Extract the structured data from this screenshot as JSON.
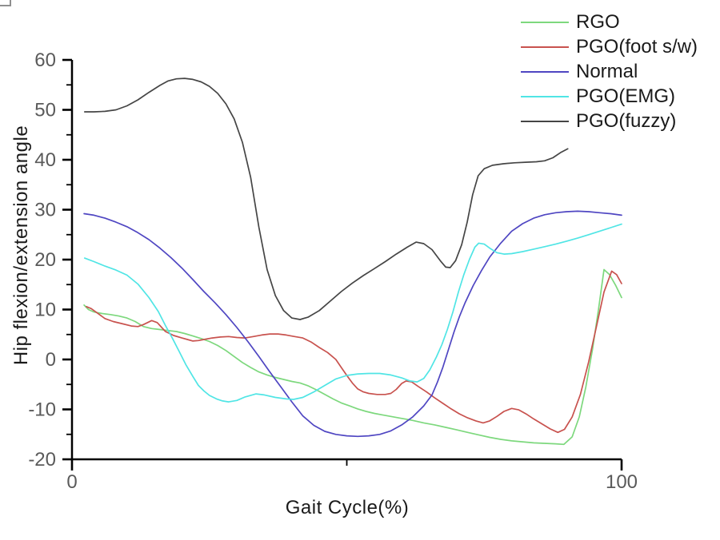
{
  "figure": {
    "background": "#ffffff",
    "xlabel": "Gait Cycle(%)",
    "ylabel": "Hip flexion/extension angle"
  },
  "chart_data": {
    "type": "line",
    "title": "",
    "xlabel": "Gait Cycle(%)",
    "ylabel": "Hip flexion/extension angle",
    "xlim": [
      0,
      100
    ],
    "ylim": [
      -20,
      60
    ],
    "x_ticks": [
      0,
      100
    ],
    "x_minor_ticks": [
      50
    ],
    "y_ticks": [
      60,
      50,
      40,
      30,
      20,
      10,
      0,
      -10,
      -20
    ],
    "y_minor_ticks": [
      55,
      45,
      35,
      25,
      15,
      5,
      -5,
      -15
    ],
    "grid": false,
    "legend_position": "top-right",
    "colors": {
      "axis": "#000000",
      "tick_label": "#5a5a5a",
      "label": "#1a1a1a"
    },
    "series": [
      {
        "name": "RGO",
        "color": "#7dd87d",
        "points": [
          [
            2.2,
            10.9
          ],
          [
            3,
            10.0
          ],
          [
            4,
            9.5
          ],
          [
            5.5,
            9.2
          ],
          [
            7,
            9.0
          ],
          [
            8.5,
            8.7
          ],
          [
            10,
            8.3
          ],
          [
            11.5,
            7.6
          ],
          [
            13,
            6.6
          ],
          [
            14.5,
            6.2
          ],
          [
            16,
            6.0
          ],
          [
            17.5,
            5.8
          ],
          [
            19,
            5.6
          ],
          [
            20.5,
            5.2
          ],
          [
            22,
            4.7
          ],
          [
            23.5,
            4.2
          ],
          [
            25,
            3.6
          ],
          [
            26.5,
            2.8
          ],
          [
            28,
            1.8
          ],
          [
            29.5,
            0.6
          ],
          [
            31,
            -0.6
          ],
          [
            32.5,
            -1.6
          ],
          [
            34,
            -2.5
          ],
          [
            35.5,
            -3.1
          ],
          [
            37,
            -3.6
          ],
          [
            38.5,
            -4.0
          ],
          [
            40,
            -4.4
          ],
          [
            41.5,
            -4.7
          ],
          [
            43,
            -5.3
          ],
          [
            44.5,
            -6.1
          ],
          [
            46,
            -7.0
          ],
          [
            47.5,
            -7.9
          ],
          [
            49,
            -8.7
          ],
          [
            50.5,
            -9.3
          ],
          [
            52,
            -9.9
          ],
          [
            53.5,
            -10.4
          ],
          [
            55,
            -10.8
          ],
          [
            56.5,
            -11.1
          ],
          [
            58,
            -11.4
          ],
          [
            60,
            -11.8
          ],
          [
            62,
            -12.2
          ],
          [
            64,
            -12.7
          ],
          [
            66,
            -13.1
          ],
          [
            68,
            -13.6
          ],
          [
            70,
            -14.1
          ],
          [
            72,
            -14.6
          ],
          [
            74,
            -15.1
          ],
          [
            76,
            -15.6
          ],
          [
            78,
            -16.0
          ],
          [
            80,
            -16.3
          ],
          [
            82,
            -16.5
          ],
          [
            84,
            -16.7
          ],
          [
            86,
            -16.8
          ],
          [
            88,
            -16.9
          ],
          [
            89.5,
            -17.0
          ],
          [
            91,
            -15.5
          ],
          [
            92.3,
            -11.5
          ],
          [
            93.5,
            -5.5
          ],
          [
            94.7,
            2.0
          ],
          [
            95.8,
            10.0
          ],
          [
            96.8,
            18.0
          ],
          [
            97.8,
            17.0
          ],
          [
            98.9,
            14.9
          ],
          [
            100,
            12.4
          ]
        ]
      },
      {
        "name": "PGO(foot s/w)",
        "color": "#c8524e",
        "points": [
          [
            2.6,
            10.6
          ],
          [
            3.5,
            10.2
          ],
          [
            4.5,
            9.4
          ],
          [
            6,
            8.2
          ],
          [
            7.5,
            7.6
          ],
          [
            9,
            7.2
          ],
          [
            10.8,
            6.7
          ],
          [
            12,
            6.6
          ],
          [
            13,
            7.0
          ],
          [
            14.5,
            7.8
          ],
          [
            15.5,
            7.4
          ],
          [
            17,
            5.6
          ],
          [
            18.5,
            4.8
          ],
          [
            20,
            4.3
          ],
          [
            21,
            4.0
          ],
          [
            22,
            3.7
          ],
          [
            23,
            3.8
          ],
          [
            24,
            4.0
          ],
          [
            25.5,
            4.3
          ],
          [
            27,
            4.5
          ],
          [
            28.5,
            4.6
          ],
          [
            30,
            4.4
          ],
          [
            31.5,
            4.3
          ],
          [
            33,
            4.6
          ],
          [
            34.5,
            4.9
          ],
          [
            36,
            5.1
          ],
          [
            37.5,
            5.1
          ],
          [
            39,
            4.9
          ],
          [
            40.5,
            4.6
          ],
          [
            42,
            4.3
          ],
          [
            43.5,
            3.5
          ],
          [
            45,
            2.4
          ],
          [
            46.5,
            1.4
          ],
          [
            48,
            0.0
          ],
          [
            49,
            -1.6
          ],
          [
            50,
            -3.2
          ],
          [
            51,
            -4.7
          ],
          [
            52,
            -5.9
          ],
          [
            53,
            -6.5
          ],
          [
            54,
            -6.8
          ],
          [
            55.5,
            -7.0
          ],
          [
            57,
            -7.0
          ],
          [
            58,
            -6.8
          ],
          [
            59,
            -6.0
          ],
          [
            60,
            -4.8
          ],
          [
            60.8,
            -4.3
          ],
          [
            61.8,
            -4.5
          ],
          [
            63,
            -5.4
          ],
          [
            64.5,
            -6.5
          ],
          [
            66,
            -7.7
          ],
          [
            67.5,
            -8.8
          ],
          [
            69,
            -9.9
          ],
          [
            70.5,
            -10.9
          ],
          [
            72,
            -11.7
          ],
          [
            73.5,
            -12.3
          ],
          [
            74.8,
            -12.7
          ],
          [
            76,
            -12.3
          ],
          [
            77.3,
            -11.4
          ],
          [
            78.6,
            -10.4
          ],
          [
            80,
            -9.8
          ],
          [
            81.3,
            -10.1
          ],
          [
            82.6,
            -10.9
          ],
          [
            84,
            -11.9
          ],
          [
            85.5,
            -12.9
          ],
          [
            87,
            -13.9
          ],
          [
            88.4,
            -14.6
          ],
          [
            89.6,
            -14.0
          ],
          [
            91,
            -11.5
          ],
          [
            92.5,
            -7.0
          ],
          [
            94,
            -0.5
          ],
          [
            95.5,
            7.0
          ],
          [
            96.8,
            13.5
          ],
          [
            98.2,
            17.7
          ],
          [
            99.1,
            17.0
          ],
          [
            100,
            15.2
          ]
        ]
      },
      {
        "name": "Normal",
        "color": "#4f46c2",
        "points": [
          [
            2.2,
            29.2
          ],
          [
            4,
            28.9
          ],
          [
            6,
            28.3
          ],
          [
            8,
            27.5
          ],
          [
            10,
            26.6
          ],
          [
            12,
            25.4
          ],
          [
            14,
            24.0
          ],
          [
            16,
            22.3
          ],
          [
            18,
            20.4
          ],
          [
            20,
            18.3
          ],
          [
            22,
            16.0
          ],
          [
            24,
            13.6
          ],
          [
            26,
            11.4
          ],
          [
            28,
            9.0
          ],
          [
            30,
            6.4
          ],
          [
            32,
            3.6
          ],
          [
            34,
            0.6
          ],
          [
            36,
            -2.5
          ],
          [
            38,
            -5.5
          ],
          [
            40,
            -8.5
          ],
          [
            42,
            -11.3
          ],
          [
            44,
            -13.2
          ],
          [
            46,
            -14.4
          ],
          [
            48,
            -15.0
          ],
          [
            50,
            -15.3
          ],
          [
            52,
            -15.4
          ],
          [
            54,
            -15.3
          ],
          [
            56,
            -15.0
          ],
          [
            58,
            -14.3
          ],
          [
            60,
            -13.1
          ],
          [
            62,
            -11.5
          ],
          [
            64,
            -9.3
          ],
          [
            65.5,
            -7.1
          ],
          [
            66.5,
            -4.5
          ],
          [
            67.5,
            -1.5
          ],
          [
            68.5,
            2.0
          ],
          [
            69.5,
            5.5
          ],
          [
            70.5,
            8.6
          ],
          [
            71.5,
            11.3
          ],
          [
            73,
            14.8
          ],
          [
            74.5,
            17.8
          ],
          [
            76,
            20.5
          ],
          [
            78,
            23.3
          ],
          [
            80,
            25.7
          ],
          [
            82,
            27.2
          ],
          [
            84,
            28.3
          ],
          [
            86,
            29.0
          ],
          [
            88,
            29.4
          ],
          [
            90,
            29.6
          ],
          [
            92,
            29.7
          ],
          [
            94,
            29.6
          ],
          [
            96,
            29.4
          ],
          [
            98,
            29.2
          ],
          [
            100,
            28.9
          ]
        ]
      },
      {
        "name": "PGO(EMG)",
        "color": "#50e5e5",
        "points": [
          [
            2.3,
            20.3
          ],
          [
            4,
            19.6
          ],
          [
            6,
            18.7
          ],
          [
            8,
            17.9
          ],
          [
            10,
            16.9
          ],
          [
            12,
            15.1
          ],
          [
            14,
            12.4
          ],
          [
            15.7,
            9.6
          ],
          [
            17,
            6.8
          ],
          [
            18.3,
            4.2
          ],
          [
            19.5,
            1.6
          ],
          [
            20.7,
            -1.0
          ],
          [
            22,
            -3.4
          ],
          [
            23,
            -5.2
          ],
          [
            24,
            -6.3
          ],
          [
            25,
            -7.2
          ],
          [
            26.3,
            -7.9
          ],
          [
            27.4,
            -8.3
          ],
          [
            28.5,
            -8.5
          ],
          [
            30,
            -8.2
          ],
          [
            31.5,
            -7.5
          ],
          [
            33.5,
            -6.9
          ],
          [
            35,
            -7.1
          ],
          [
            37,
            -7.6
          ],
          [
            39,
            -7.9
          ],
          [
            40.3,
            -8.0
          ],
          [
            42,
            -7.6
          ],
          [
            44,
            -6.5
          ],
          [
            46,
            -5.2
          ],
          [
            48,
            -3.9
          ],
          [
            50,
            -3.2
          ],
          [
            52,
            -2.9
          ],
          [
            54,
            -2.8
          ],
          [
            56,
            -2.8
          ],
          [
            58,
            -3.1
          ],
          [
            60,
            -3.7
          ],
          [
            61.5,
            -4.3
          ],
          [
            62.8,
            -4.5
          ],
          [
            64,
            -3.8
          ],
          [
            65.1,
            -2.1
          ],
          [
            66.3,
            0.5
          ],
          [
            67.3,
            3.0
          ],
          [
            68.3,
            6.0
          ],
          [
            69.3,
            9.5
          ],
          [
            70.3,
            13.5
          ],
          [
            71.3,
            17.0
          ],
          [
            72.3,
            20.0
          ],
          [
            73.3,
            22.5
          ],
          [
            74,
            23.3
          ],
          [
            75,
            23.1
          ],
          [
            76,
            22.3
          ],
          [
            77.3,
            21.4
          ],
          [
            78.6,
            21.1
          ],
          [
            80,
            21.2
          ],
          [
            82,
            21.6
          ],
          [
            84,
            22.1
          ],
          [
            86,
            22.6
          ],
          [
            88,
            23.1
          ],
          [
            90,
            23.7
          ],
          [
            92,
            24.3
          ],
          [
            94,
            25.0
          ],
          [
            96,
            25.7
          ],
          [
            98,
            26.4
          ],
          [
            100,
            27.1
          ]
        ]
      },
      {
        "name": "PGO(fuzzy)",
        "color": "#454545",
        "points": [
          [
            2.3,
            49.6
          ],
          [
            4,
            49.6
          ],
          [
            6,
            49.7
          ],
          [
            8,
            50.0
          ],
          [
            10,
            50.8
          ],
          [
            12,
            52.0
          ],
          [
            14,
            53.5
          ],
          [
            16,
            54.9
          ],
          [
            17.5,
            55.8
          ],
          [
            19,
            56.2
          ],
          [
            20.5,
            56.3
          ],
          [
            22,
            56.1
          ],
          [
            23.5,
            55.6
          ],
          [
            25,
            54.7
          ],
          [
            26.5,
            53.3
          ],
          [
            28,
            51.2
          ],
          [
            29.5,
            48.2
          ],
          [
            31,
            43.5
          ],
          [
            32.5,
            36.5
          ],
          [
            34,
            26.5
          ],
          [
            35.5,
            18.0
          ],
          [
            37,
            12.8
          ],
          [
            38.5,
            9.8
          ],
          [
            40,
            8.3
          ],
          [
            41.5,
            8.0
          ],
          [
            43,
            8.5
          ],
          [
            45,
            9.8
          ],
          [
            47,
            11.7
          ],
          [
            49,
            13.6
          ],
          [
            51,
            15.3
          ],
          [
            53,
            16.8
          ],
          [
            55,
            18.2
          ],
          [
            57,
            19.6
          ],
          [
            59,
            21.1
          ],
          [
            61,
            22.5
          ],
          [
            62.6,
            23.5
          ],
          [
            64,
            23.2
          ],
          [
            65.5,
            22.0
          ],
          [
            67,
            19.8
          ],
          [
            68,
            18.5
          ],
          [
            68.8,
            18.4
          ],
          [
            69.8,
            19.8
          ],
          [
            70.9,
            23.0
          ],
          [
            71.9,
            27.5
          ],
          [
            72.9,
            33.0
          ],
          [
            73.9,
            36.8
          ],
          [
            75,
            38.2
          ],
          [
            76.5,
            38.9
          ],
          [
            78.5,
            39.2
          ],
          [
            80.5,
            39.4
          ],
          [
            82.5,
            39.5
          ],
          [
            84.5,
            39.6
          ],
          [
            86,
            39.8
          ],
          [
            87.5,
            40.4
          ],
          [
            89,
            41.5
          ],
          [
            90.2,
            42.2
          ]
        ]
      }
    ]
  }
}
